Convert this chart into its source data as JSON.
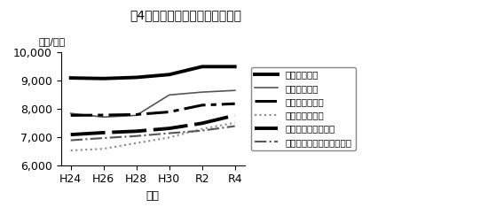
{
  "title": "围4　農業臨時雇賃金の年次推移",
  "ylabel": "（円/日）",
  "xlabel": "年度",
  "xtick_labels": [
    "H24",
    "H26",
    "H28",
    "H30",
    "R2",
    "R4"
  ],
  "x_values": [
    0,
    1,
    2,
    3,
    4,
    5
  ],
  "ylim": [
    6000,
    10000
  ],
  "yticks": [
    6000,
    7000,
    8000,
    9000,
    10000
  ],
  "series": [
    {
      "label": "専門作業・男",
      "values": [
        9080,
        9060,
        9100,
        9200,
        9480,
        9480
      ],
      "color": "#000000",
      "linestyle": "solid",
      "linewidth": 2.8
    },
    {
      "label": "専門作業・女",
      "values": [
        7830,
        7700,
        7760,
        8480,
        8580,
        8640
      ],
      "color": "#555555",
      "linestyle": "solid",
      "linewidth": 1.2
    },
    {
      "label": "一般軽作業・男",
      "values": [
        7760,
        7770,
        7790,
        7880,
        8120,
        8170
      ],
      "color": "#000000",
      "linestyle": "dashdot",
      "linewidth": 2.2,
      "dash_pattern": [
        8,
        2,
        2,
        2
      ]
    },
    {
      "label": "一般軽作業・女",
      "values": [
        6520,
        6580,
        6780,
        6980,
        7280,
        7500
      ],
      "color": "#888888",
      "linestyle": "dotted",
      "linewidth": 1.5
    },
    {
      "label": "・機械作業補助・男",
      "values": [
        7080,
        7150,
        7200,
        7300,
        7480,
        7760
      ],
      "color": "#000000",
      "linestyle": "dashed",
      "linewidth": 2.8,
      "dash_pattern": [
        10,
        2
      ]
    },
    {
      "label": "機械作業補助・女",
      "values": [
        6880,
        6960,
        7030,
        7130,
        7220,
        7380
      ],
      "color": "#555555",
      "linestyle": "dashdot",
      "linewidth": 1.5
    }
  ],
  "legend_labels": [
    "専門作業・男",
    "専門作業・女",
    "一般軽作業・男",
    "一般軽作業・女",
    "・機械作業補助・男",
    "－・－　機械作業補助・女"
  ],
  "background_color": "#ffffff"
}
